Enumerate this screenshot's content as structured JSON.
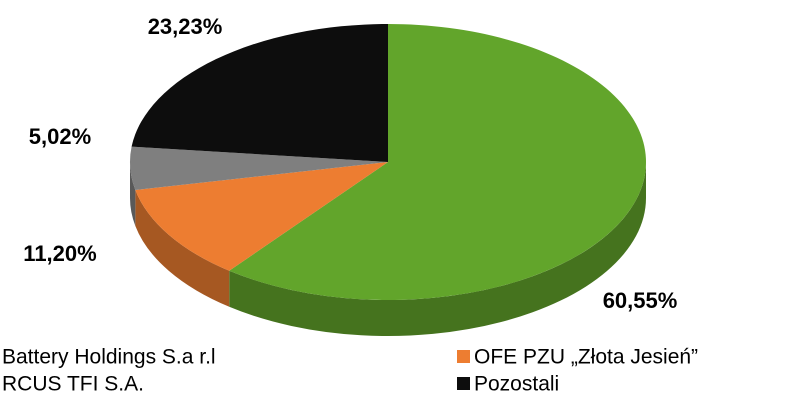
{
  "chart_data": {
    "type": "pie",
    "categories": [
      "Battery Holdings S.a r.l",
      "OFE PZU „Złota Jesień”",
      "RCUS TFI S.A.",
      "Pozostali"
    ],
    "values": [
      60.55,
      11.2,
      5.02,
      23.23
    ],
    "value_labels": [
      "60,55%",
      "11,20%",
      "5,02%",
      "23,23%"
    ],
    "colors": [
      "#62a52b",
      "#ed7d31",
      "#7f7f7f",
      "#0d0d0d"
    ]
  }
}
